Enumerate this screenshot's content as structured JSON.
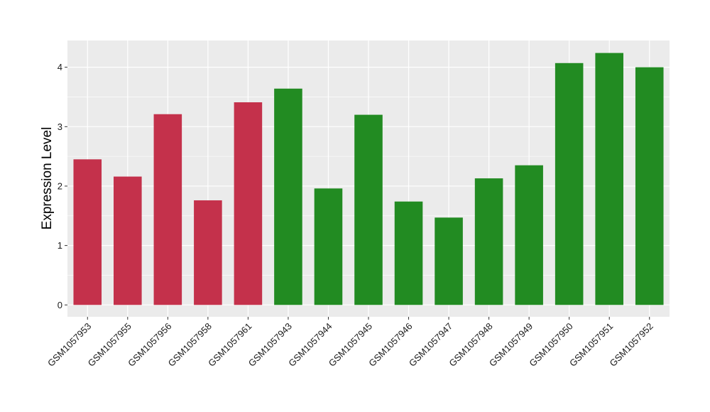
{
  "chart_data": {
    "type": "bar",
    "title": "",
    "xlabel": "",
    "ylabel": "Expression Level",
    "ylim": [
      -0.2,
      4.45
    ],
    "y_ticks": [
      0,
      1,
      2,
      3,
      4
    ],
    "grid": true,
    "legend": "none",
    "categories": [
      "GSM1057953",
      "GSM1057955",
      "GSM1057956",
      "GSM1057958",
      "GSM1057961",
      "GSM1057943",
      "GSM1057944",
      "GSM1057945",
      "GSM1057946",
      "GSM1057947",
      "GSM1057948",
      "GSM1057949",
      "GSM1057950",
      "GSM1057951",
      "GSM1057952"
    ],
    "values": [
      2.45,
      2.16,
      3.21,
      1.76,
      3.41,
      3.64,
      1.96,
      3.2,
      1.74,
      1.47,
      2.13,
      2.35,
      4.07,
      4.24,
      4.0
    ],
    "groups": [
      "a",
      "a",
      "a",
      "a",
      "a",
      "b",
      "b",
      "b",
      "b",
      "b",
      "b",
      "b",
      "b",
      "b",
      "b"
    ],
    "group_colors": {
      "a": "#C4314B",
      "b": "#228B22"
    },
    "panel_color": "#EBEBEB",
    "grid_color": "#FFFFFF"
  }
}
